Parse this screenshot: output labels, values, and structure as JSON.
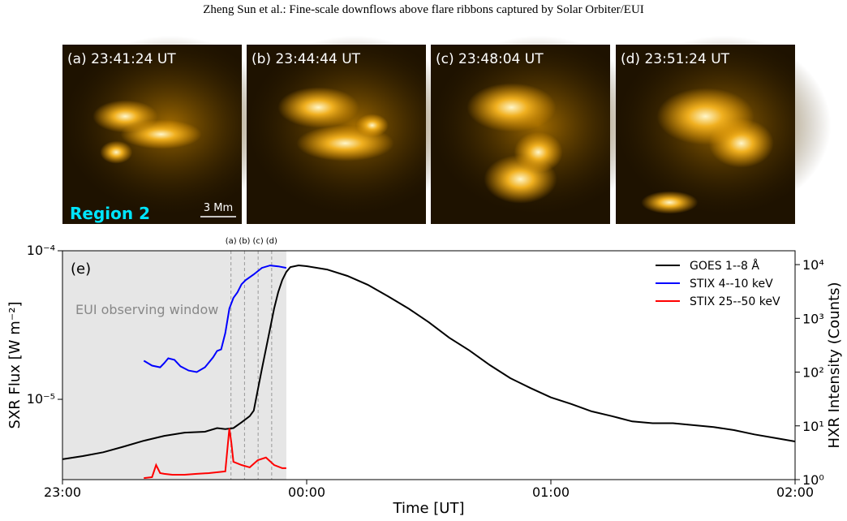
{
  "header": {
    "title": "Zheng Sun et al.: Fine-scale downflows above flare ribbons captured by Solar Orbiter/EUI"
  },
  "panels": [
    {
      "label": "(a) 23:41:24 UT"
    },
    {
      "label": "(b) 23:44:44 UT"
    },
    {
      "label": "(c) 23:48:04 UT"
    },
    {
      "label": "(d) 23:51:24 UT"
    }
  ],
  "region_label": "Region 2",
  "scale_bar": "3 Mm",
  "chart_data": {
    "type": "line",
    "panel_label": "(e)",
    "annotation": "EUI observing window",
    "shade_xlim": [
      0,
      55
    ],
    "markers": [
      {
        "value": 41.4,
        "label": "(a)"
      },
      {
        "value": 44.73,
        "label": "(b)"
      },
      {
        "value": 48.07,
        "label": "(c)"
      },
      {
        "value": 51.4,
        "label": "(d)"
      }
    ],
    "x_label": "Time [UT]",
    "y_label": "SXR Flux [W m⁻²]",
    "y2_label": "HXR Intensity (Counts)",
    "xlim": [
      0,
      180
    ],
    "xticks": [
      {
        "value": 0,
        "label": "23:00"
      },
      {
        "value": 60,
        "label": "00:00"
      },
      {
        "value": 120,
        "label": "01:00"
      },
      {
        "value": 180,
        "label": "02:00"
      }
    ],
    "ylim": [
      2.88e-06,
      0.0001
    ],
    "log_y": true,
    "yticks": [
      {
        "value": 1e-05,
        "label": "10⁻⁵"
      },
      {
        "value": 0.0001,
        "label": "10⁻⁴"
      }
    ],
    "y2lim": [
      1,
      18100
    ],
    "log_y2": true,
    "y2ticks": [
      {
        "value": 1,
        "label": "10⁰"
      },
      {
        "value": 10,
        "label": "10¹"
      },
      {
        "value": 100,
        "label": "10²"
      },
      {
        "value": 1000,
        "label": "10³"
      },
      {
        "value": 10000,
        "label": "10⁴"
      }
    ],
    "legend": "upper right",
    "series": [
      {
        "name": "GOES 1--8 Å",
        "color": "#000000",
        "x": [
          0,
          5,
          10,
          15,
          20,
          25,
          30,
          35,
          38,
          40,
          42,
          44,
          46,
          47,
          48,
          49,
          50,
          51,
          52,
          53,
          54,
          55,
          56,
          58,
          60,
          65,
          70,
          75,
          80,
          85,
          90,
          95,
          100,
          105,
          110,
          115,
          120,
          125,
          130,
          135,
          140,
          145,
          150,
          155,
          160,
          165,
          170,
          175,
          180
        ],
        "values": [
          3.95e-06,
          4.15e-06,
          4.4e-06,
          4.8e-06,
          5.26e-06,
          5.67e-06,
          5.97e-06,
          6.05e-06,
          6.4e-06,
          6.3e-06,
          6.4e-06,
          7e-06,
          7.7e-06,
          8.4e-06,
          1.16e-05,
          1.6e-05,
          2.18e-05,
          2.99e-05,
          4.09e-05,
          5.26e-05,
          6.35e-05,
          7.2e-05,
          7.77e-05,
          7.97e-05,
          7.87e-05,
          7.48e-05,
          6.77e-05,
          5.9e-05,
          4.94e-05,
          4.09e-05,
          3.3e-05,
          2.6e-05,
          2.13e-05,
          1.7e-05,
          1.39e-05,
          1.19e-05,
          1.03e-05,
          9.3e-06,
          8.3e-06,
          7.7e-06,
          7.1e-06,
          6.9e-06,
          6.9e-06,
          6.7e-06,
          6.5e-06,
          6.2e-06,
          5.8e-06,
          5.5e-06,
          5.2e-06
        ]
      },
      {
        "name": "STIX 4--10 keV",
        "color": "#0000ff",
        "axis": "y2",
        "x": [
          20,
          22,
          24,
          25,
          26,
          27.5,
          29,
          31,
          33,
          35,
          37,
          38,
          39,
          40,
          41,
          42,
          43,
          44,
          45,
          47,
          49,
          51,
          53,
          55
        ],
        "values": [
          163,
          132,
          123,
          147,
          181,
          169,
          128,
          107,
          100,
          123,
          188,
          248,
          265,
          533,
          1520,
          2400,
          3050,
          4300,
          5150,
          6580,
          8700,
          9650,
          9300,
          8700
        ]
      },
      {
        "name": "STIX 25--50 keV",
        "color": "#ff0000",
        "axis": "y2",
        "x": [
          20,
          22,
          23,
          24,
          25,
          27,
          30,
          33,
          36,
          40,
          41,
          41.5,
          42,
          44,
          46,
          48,
          50,
          52,
          54,
          55
        ],
        "values": [
          1.07,
          1.11,
          1.87,
          1.32,
          1.28,
          1.23,
          1.23,
          1.28,
          1.32,
          1.42,
          9.0,
          4.8,
          2.15,
          1.87,
          1.69,
          2.3,
          2.57,
          1.87,
          1.63,
          1.63
        ]
      }
    ]
  }
}
